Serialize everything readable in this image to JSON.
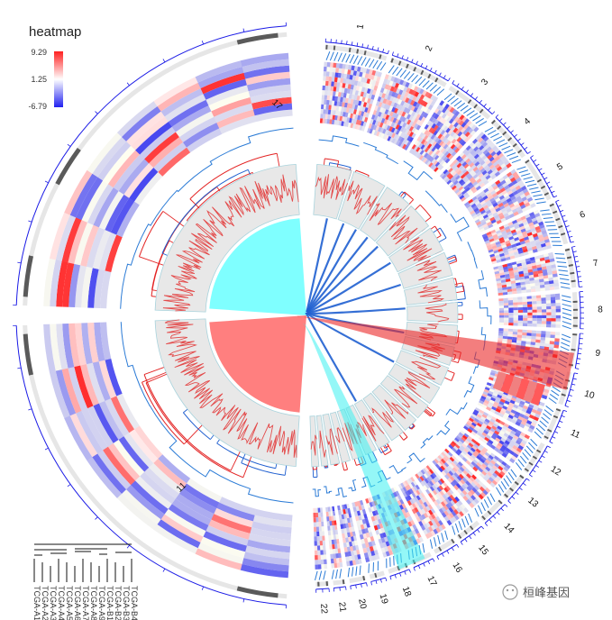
{
  "chart_data": {
    "type": "circos",
    "title": "heatmap",
    "legend": {
      "title": "heatmap",
      "ticks": [
        "9.29",
        "1.25",
        "-6.79"
      ],
      "max": 9.29,
      "mid": 1.25,
      "min": -6.79,
      "colors": {
        "high": "#ff2a2a",
        "mid": "#ffffff",
        "low": "#2a2af0"
      }
    },
    "chromosome_labels": [
      "1",
      "2",
      "3",
      "4",
      "5",
      "6",
      "7",
      "8",
      "9",
      "10",
      "11",
      "12",
      "13",
      "14",
      "15",
      "16",
      "17",
      "18",
      "19",
      "20",
      "21",
      "22"
    ],
    "zoomed_labels": [
      "17",
      "11"
    ],
    "links": {
      "blue_count": 11,
      "highlight_red": {
        "from": "chr11-zoom",
        "to": "chr10-11"
      },
      "highlight_cyan": {
        "from": "chr11-zoom",
        "to": "chr17"
      }
    },
    "colors": {
      "heat_high": "#ff2a2a",
      "heat_low": "#2a2af0",
      "track_line": "#2b7bd6",
      "dendro_red": "#e32222",
      "dendro_blue": "#1f5fd0",
      "cyan_sector": "#7fffff",
      "red_sector": "#ff7f7f",
      "panel_gray": "#e8e8e8",
      "cytoband": "#5a5a5a",
      "axis_blue": "#1a1ae6"
    }
  },
  "dendrogram_legend": {
    "sample_labels": [
      "TCGA-A1",
      "TCGA-A2",
      "TCGA-A3",
      "TCGA-A4",
      "TCGA-A5",
      "TCGA-A6",
      "TCGA-A7",
      "TCGA-A8",
      "TCGA-A9",
      "TCGA-B1",
      "TCGA-B2",
      "TCGA-B3",
      "TCGA-B4"
    ]
  },
  "watermark": {
    "text": "桓峰基因",
    "icon": "wechat-icon"
  }
}
